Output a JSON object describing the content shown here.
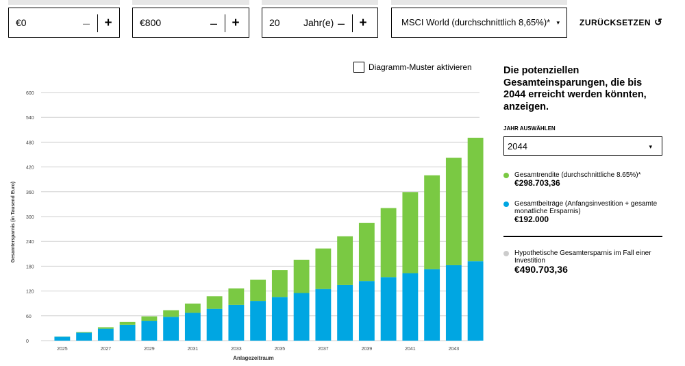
{
  "inputs": {
    "initial": {
      "value": "€0",
      "minus": "–",
      "plus": "+"
    },
    "monthly": {
      "value": "€800",
      "minus": "–",
      "plus": "+"
    },
    "years": {
      "value": "20",
      "unit": "Jahr(e)",
      "minus": "–",
      "plus": "+"
    },
    "index": {
      "value": "MSCI World (durchschnittlich 8,65%)*",
      "caret": "▾"
    }
  },
  "reset": {
    "label": "ZURÜCKSETZEN",
    "icon": "↺"
  },
  "pattern": {
    "label": "Diagramm-Muster aktivieren"
  },
  "side": {
    "title": "Die potenziellen Gesamteinsparungen, die bis 2044 erreicht werden könnten, anzeigen.",
    "year_label": "JAHR AUSWÄHLEN",
    "year_value": "2044",
    "year_caret": "▾",
    "return_label": "Gesamtrendite (durchschnittliche 8.65%)*",
    "return_amount": "€298.703,36",
    "contrib_label": "Gesamtbeiträge (Anfangsinvestition + gesamte monatliche Ersparnis)",
    "contrib_amount": "€192.000",
    "hypo_label": "Hypothetische Gesamtersparnis im Fall einer Investition",
    "hypo_amount": "€490.703,36"
  },
  "colors": {
    "returns": "#7ac943",
    "contributions": "#00a6e2",
    "hypothetical": "#cccccc",
    "grid": "#cfcfcf"
  },
  "chart_data": {
    "type": "bar",
    "stacked": true,
    "xlabel": "Anlagezeitraum",
    "ylabel": "Gesamtersparnis (in Tausend Euro)",
    "ylim": [
      0,
      600
    ],
    "yticks": [
      0,
      60,
      120,
      180,
      240,
      300,
      360,
      420,
      480,
      540,
      600
    ],
    "xtick_labels": [
      "2025",
      "2027",
      "2029",
      "2031",
      "2033",
      "2035",
      "2037",
      "2039",
      "2041",
      "2043"
    ],
    "categories": [
      "2025",
      "2026",
      "2027",
      "2028",
      "2029",
      "2030",
      "2031",
      "2032",
      "2033",
      "2034",
      "2035",
      "2036",
      "2037",
      "2038",
      "2039",
      "2040",
      "2041",
      "2042",
      "2043",
      "2044"
    ],
    "series": [
      {
        "name": "Gesamtbeiträge",
        "values": [
          9.6,
          19.2,
          28.8,
          38.4,
          48,
          57.6,
          67.2,
          76.8,
          86.4,
          96,
          105.6,
          115.2,
          124.8,
          134.4,
          144,
          153.6,
          163.2,
          172.8,
          182.4,
          192
        ]
      },
      {
        "name": "Gesamtrendite",
        "values": [
          0.4,
          1.6,
          3.6,
          6.6,
          10.7,
          16,
          22.5,
          30.5,
          40,
          51.5,
          65,
          80.5,
          98,
          118,
          141,
          167,
          196,
          227,
          260,
          298.7
        ]
      }
    ]
  }
}
